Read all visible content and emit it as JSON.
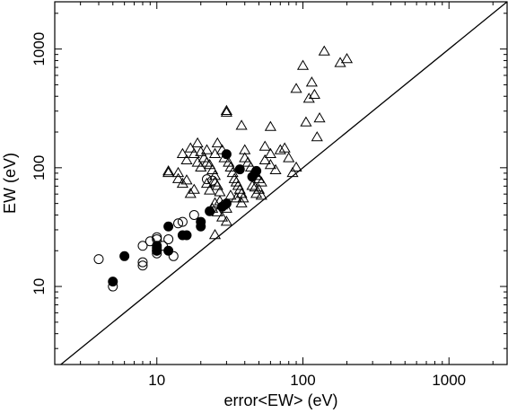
{
  "chart_data": {
    "type": "scatter",
    "title": "",
    "xlabel": "error<EW> (eV)",
    "ylabel": "EW (eV)",
    "x_scale": "log",
    "y_scale": "log",
    "xlim": [
      2,
      2500
    ],
    "ylim": [
      2.2,
      2500
    ],
    "x_ticks": [
      10,
      100,
      1000
    ],
    "x_tick_labels": [
      "10",
      "100",
      "1000"
    ],
    "y_ticks": [
      10,
      100,
      1000
    ],
    "y_tick_labels": [
      "10",
      "100",
      "1000"
    ],
    "grid": false,
    "legend": "none",
    "reference_line": {
      "type": "y=x"
    },
    "series": [
      {
        "marker": "triangle-open",
        "points": [
          [
            140,
            950
          ],
          [
            100,
            720
          ],
          [
            180,
            760
          ],
          [
            200,
            820
          ],
          [
            115,
            520
          ],
          [
            90,
            460
          ],
          [
            110,
            380
          ],
          [
            120,
            410
          ],
          [
            130,
            260
          ],
          [
            105,
            240
          ],
          [
            125,
            180
          ],
          [
            30,
            300
          ],
          [
            30,
            290
          ],
          [
            60,
            220
          ],
          [
            38,
            225
          ],
          [
            12,
            93
          ],
          [
            12,
            90
          ],
          [
            15,
            130
          ],
          [
            17,
            145
          ],
          [
            19,
            160
          ],
          [
            16,
            115
          ],
          [
            14,
            90
          ],
          [
            14,
            80
          ],
          [
            15,
            73
          ],
          [
            16,
            78
          ],
          [
            17,
            60
          ],
          [
            18,
            65
          ],
          [
            19,
            110
          ],
          [
            20,
            100
          ],
          [
            21,
            120
          ],
          [
            22,
            140
          ],
          [
            23,
            105
          ],
          [
            24,
            95
          ],
          [
            25,
            85
          ],
          [
            26,
            70
          ],
          [
            22,
            73
          ],
          [
            23,
            64
          ],
          [
            25,
            75
          ],
          [
            26,
            160
          ],
          [
            28,
            140
          ],
          [
            29,
            120
          ],
          [
            31,
            110
          ],
          [
            32,
            100
          ],
          [
            33,
            90
          ],
          [
            34,
            80
          ],
          [
            35,
            75
          ],
          [
            36,
            70
          ],
          [
            37,
            65
          ],
          [
            38,
            60
          ],
          [
            39,
            55
          ],
          [
            27,
            52
          ],
          [
            28,
            48
          ],
          [
            30,
            45
          ],
          [
            32,
            58
          ],
          [
            35,
            55
          ],
          [
            38,
            50
          ],
          [
            40,
            120
          ],
          [
            42,
            110
          ],
          [
            44,
            100
          ],
          [
            46,
            90
          ],
          [
            48,
            85
          ],
          [
            50,
            80
          ],
          [
            52,
            75
          ],
          [
            50,
            65
          ],
          [
            48,
            60
          ],
          [
            52,
            58
          ],
          [
            55,
            115
          ],
          [
            60,
            105
          ],
          [
            65,
            95
          ],
          [
            70,
            140
          ],
          [
            75,
            145
          ],
          [
            80,
            120
          ],
          [
            85,
            90
          ],
          [
            90,
            100
          ],
          [
            45,
            70
          ],
          [
            47,
            68
          ],
          [
            18,
            130
          ],
          [
            20,
            135
          ],
          [
            24,
            45
          ],
          [
            26,
            42
          ],
          [
            28,
            38
          ],
          [
            25,
            27
          ],
          [
            30,
            35
          ],
          [
            40,
            140
          ],
          [
            55,
            150
          ],
          [
            60,
            130
          ],
          [
            25,
            130
          ],
          [
            25,
            50
          ],
          [
            22,
            110
          ],
          [
            27,
            62
          ]
        ]
      },
      {
        "marker": "circle-open",
        "points": [
          [
            4,
            17
          ],
          [
            5,
            10
          ],
          [
            8,
            15
          ],
          [
            8,
            16
          ],
          [
            8,
            22
          ],
          [
            9,
            24
          ],
          [
            10,
            25
          ],
          [
            10,
            21
          ],
          [
            10,
            20
          ],
          [
            10,
            19
          ],
          [
            11,
            22
          ],
          [
            12,
            25
          ],
          [
            13,
            18
          ],
          [
            14,
            34
          ],
          [
            15,
            35
          ],
          [
            18,
            40
          ],
          [
            22,
            80
          ],
          [
            24,
            78
          ],
          [
            10,
            26
          ]
        ]
      },
      {
        "marker": "circle-filled",
        "points": [
          [
            5,
            11
          ],
          [
            6,
            18
          ],
          [
            10,
            20
          ],
          [
            10,
            22
          ],
          [
            12,
            20
          ],
          [
            12,
            32
          ],
          [
            15,
            27
          ],
          [
            16,
            27
          ],
          [
            20,
            32
          ],
          [
            20,
            35
          ],
          [
            23,
            43
          ],
          [
            28,
            47
          ],
          [
            30,
            50
          ],
          [
            30,
            130
          ],
          [
            37,
            97
          ],
          [
            45,
            84
          ],
          [
            47,
            90
          ],
          [
            48,
            94
          ]
        ]
      }
    ]
  }
}
